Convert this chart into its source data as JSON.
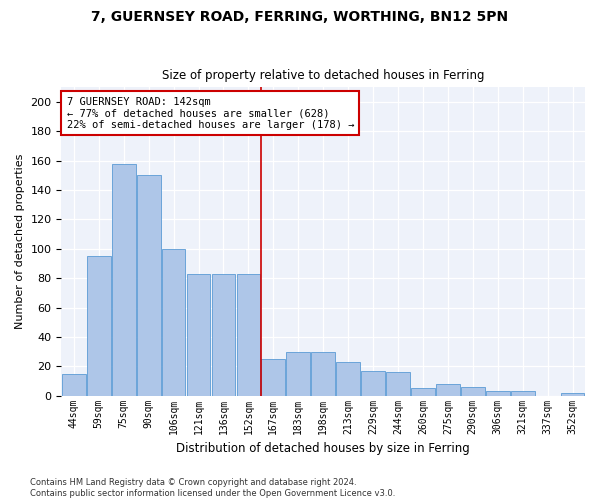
{
  "title1": "7, GUERNSEY ROAD, FERRING, WORTHING, BN12 5PN",
  "title2": "Size of property relative to detached houses in Ferring",
  "xlabel": "Distribution of detached houses by size in Ferring",
  "ylabel": "Number of detached properties",
  "categories": [
    "44sqm",
    "59sqm",
    "75sqm",
    "90sqm",
    "106sqm",
    "121sqm",
    "136sqm",
    "152sqm",
    "167sqm",
    "183sqm",
    "198sqm",
    "213sqm",
    "229sqm",
    "244sqm",
    "260sqm",
    "275sqm",
    "290sqm",
    "306sqm",
    "321sqm",
    "337sqm",
    "352sqm"
  ],
  "values": [
    15,
    95,
    158,
    150,
    100,
    83,
    83,
    83,
    25,
    30,
    30,
    23,
    17,
    16,
    5,
    8,
    6,
    3,
    3,
    0,
    2
  ],
  "bar_color": "#aec6e8",
  "bar_edge_color": "#5b9bd5",
  "vline_color": "#cc0000",
  "vline_x": 7.5,
  "ylim": [
    0,
    210
  ],
  "yticks": [
    0,
    20,
    40,
    60,
    80,
    100,
    120,
    140,
    160,
    180,
    200
  ],
  "annotation_text": "7 GUERNSEY ROAD: 142sqm\n← 77% of detached houses are smaller (628)\n22% of semi-detached houses are larger (178) →",
  "annotation_box_color": "#ffffff",
  "annotation_border_color": "#cc0000",
  "bg_color": "#eef2fa",
  "footer": "Contains HM Land Registry data © Crown copyright and database right 2024.\nContains public sector information licensed under the Open Government Licence v3.0."
}
